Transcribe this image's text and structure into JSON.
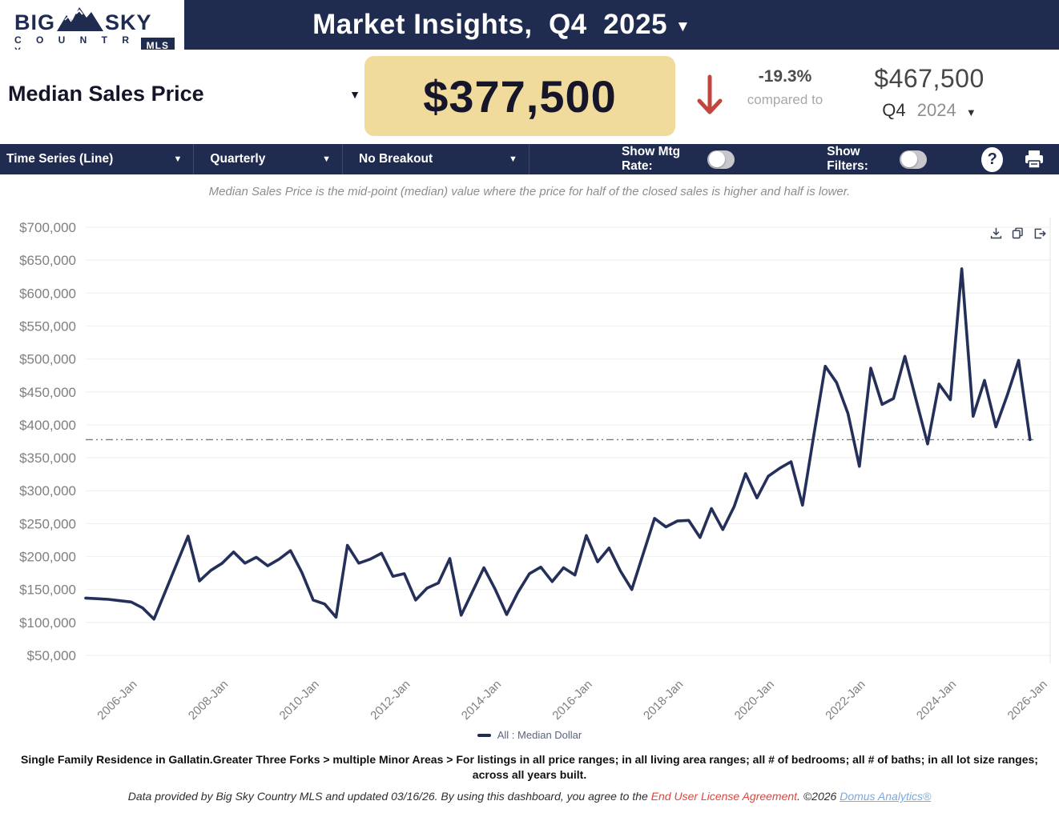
{
  "header": {
    "logo": {
      "word_left": "BIG",
      "word_right": "SKY",
      "country": "C O U N T R Y",
      "badge": "MLS"
    },
    "title": "Market Insights,  Q4  2025",
    "title_caret": "▼"
  },
  "kpi": {
    "metric_label": "Median Sales Price",
    "metric_caret": "▼",
    "current_value": "$377,500",
    "trend_direction": "down",
    "change_pct": "-19.3%",
    "compared_to_label": "compared to",
    "previous_value": "$467,500",
    "previous_quarter": "Q4",
    "previous_year": "2024",
    "previous_caret": "▼",
    "accent_box_color": "#f0db9d",
    "trend_arrow_color": "#c0463e"
  },
  "toolbar": {
    "chart_type": "Time Series (Line)",
    "frequency": "Quarterly",
    "breakout": "No Breakout",
    "show_mtg_rate_label": "Show Mtg Rate:",
    "mtg_rate_on": false,
    "show_filters_label": "Show Filters:",
    "filters_on": false,
    "help_label": "?",
    "bar_color": "#202b50"
  },
  "chart": {
    "subtitle": "Median Sales Price is the mid-point (median) value where the price for half of the closed sales is higher and half is lower.",
    "legend_label": "All : Median Dollar",
    "action_icons": [
      "download",
      "copy",
      "export"
    ]
  },
  "chart_data": {
    "type": "line",
    "title": "",
    "subtitle": "Median Sales Price is the mid-point (median) value where the price for half of the closed sales is higher and half is lower.",
    "legend_position": "bottom",
    "grid": true,
    "line_color": "#25305a",
    "ylim": [
      50000,
      700000
    ],
    "ytick_step": 50000,
    "ytick_labels": [
      "$50,000",
      "$100,000",
      "$150,000",
      "$200,000",
      "$250,000",
      "$300,000",
      "$350,000",
      "$400,000",
      "$450,000",
      "$500,000",
      "$550,000",
      "$600,000",
      "$650,000",
      "$700,000"
    ],
    "xtick_labels": [
      "2006-Jan",
      "2008-Jan",
      "2010-Jan",
      "2012-Jan",
      "2014-Jan",
      "2016-Jan",
      "2018-Jan",
      "2020-Jan",
      "2022-Jan",
      "2024-Jan",
      "2026-Jan"
    ],
    "xtick_first_index": 4,
    "xtick_interval": 8,
    "reference_line": {
      "value": 377500,
      "style": "dash-dot",
      "color": "#7a7a7a"
    },
    "categories": [
      "2005-Q1",
      "2005-Q2",
      "2005-Q3",
      "2005-Q4",
      "2006-Q1",
      "2006-Q2",
      "2006-Q3",
      "2006-Q4",
      "2007-Q1",
      "2007-Q2",
      "2007-Q3",
      "2007-Q4",
      "2008-Q1",
      "2008-Q2",
      "2008-Q3",
      "2008-Q4",
      "2009-Q1",
      "2009-Q2",
      "2009-Q3",
      "2009-Q4",
      "2010-Q1",
      "2010-Q2",
      "2010-Q3",
      "2010-Q4",
      "2011-Q1",
      "2011-Q2",
      "2011-Q3",
      "2011-Q4",
      "2012-Q1",
      "2012-Q2",
      "2012-Q3",
      "2012-Q4",
      "2013-Q1",
      "2013-Q2",
      "2013-Q3",
      "2013-Q4",
      "2014-Q1",
      "2014-Q2",
      "2014-Q3",
      "2014-Q4",
      "2015-Q1",
      "2015-Q2",
      "2015-Q3",
      "2015-Q4",
      "2016-Q1",
      "2016-Q2",
      "2016-Q3",
      "2016-Q4",
      "2017-Q1",
      "2017-Q2",
      "2017-Q3",
      "2017-Q4",
      "2018-Q1",
      "2018-Q2",
      "2018-Q3",
      "2018-Q4",
      "2019-Q1",
      "2019-Q2",
      "2019-Q3",
      "2019-Q4",
      "2020-Q1",
      "2020-Q2",
      "2020-Q3",
      "2020-Q4",
      "2021-Q1",
      "2021-Q2",
      "2021-Q3",
      "2021-Q4",
      "2022-Q1",
      "2022-Q2",
      "2022-Q3",
      "2022-Q4",
      "2023-Q1",
      "2023-Q2",
      "2023-Q3",
      "2023-Q4",
      "2024-Q1",
      "2024-Q2",
      "2024-Q3",
      "2024-Q4",
      "2025-Q1",
      "2025-Q2",
      "2025-Q3",
      "2025-Q4"
    ],
    "series": [
      {
        "name": "All : Median Dollar",
        "values": [
          137000,
          136000,
          135000,
          133000,
          131000,
          122000,
          105000,
          147000,
          189000,
          231000,
          163000,
          179000,
          190000,
          207000,
          190000,
          199000,
          186000,
          196000,
          209000,
          176000,
          134000,
          128000,
          108000,
          217000,
          190000,
          196000,
          205000,
          170000,
          174000,
          134000,
          152000,
          160000,
          197000,
          111000,
          147000,
          183000,
          150000,
          112000,
          146000,
          174000,
          184000,
          162000,
          183000,
          172000,
          232000,
          192000,
          213000,
          178000,
          150000,
          204000,
          258000,
          245000,
          254000,
          255000,
          229000,
          273000,
          241000,
          276000,
          326000,
          289000,
          322000,
          334000,
          344000,
          278000,
          385000,
          489000,
          464000,
          417000,
          337000,
          486000,
          431000,
          440000,
          504000,
          437000,
          371000,
          462000,
          438000,
          637000,
          413000,
          467500,
          397000,
          445000,
          498000,
          377500
        ]
      }
    ]
  },
  "footer": {
    "filters_line": "Single Family Residence in Gallatin.Greater Three Forks > multiple Minor Areas > For listings in all price ranges; in all living area ranges; all # of bedrooms; all # of baths; in all lot size ranges; across all years built.",
    "attribution_prefix": "Data provided by Big Sky Country MLS and updated 03/16/26.  By using this dashboard, you agree to the ",
    "eula_link": "End User License Agreement",
    "attribution_mid": ".  ©2026 ",
    "brand_link": "Domus Analytics®"
  }
}
